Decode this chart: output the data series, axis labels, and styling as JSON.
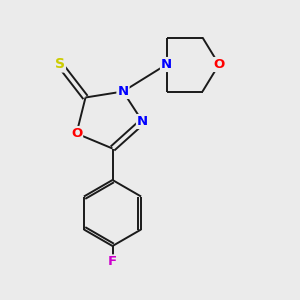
{
  "background_color": "#ebebeb",
  "bond_color": "#1a1a1a",
  "atom_colors": {
    "N": "#0000ff",
    "O": "#ff0000",
    "S": "#cccc00",
    "F": "#cc00cc",
    "C": "#1a1a1a"
  },
  "figsize": [
    3.0,
    3.0
  ],
  "dpi": 100,
  "lw": 1.4,
  "fs": 9.5
}
